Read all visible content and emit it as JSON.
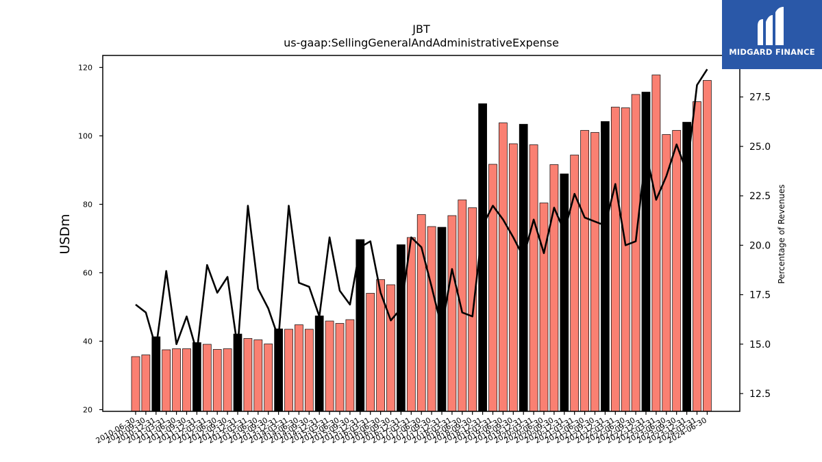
{
  "chart_data": {
    "type": "bar",
    "title": "JBT",
    "subtitle": "us-gaap:SellingGeneralAndAdministrativeExpense",
    "ylabel": "USDm",
    "y2label": "Percentage of Revenues",
    "ylim": [
      19.5,
      123.5
    ],
    "y2lim": [
      11.6,
      29.6
    ],
    "yticks": [
      20,
      40,
      60,
      80,
      100,
      120
    ],
    "y2ticks": [
      12.5,
      15.0,
      17.5,
      20.0,
      22.5,
      25.0,
      27.5
    ],
    "grid": false,
    "colors": {
      "bar_quarter": "#fa8072",
      "bar_annual": "#000000",
      "line": "#000000"
    },
    "categories": [
      "2010-06-30",
      "2010-09-30",
      "2010-12-31",
      "2011-03-31",
      "2011-06-30",
      "2011-09-30",
      "2011-12-31",
      "2012-03-31",
      "2012-06-30",
      "2012-09-30",
      "2012-12-31",
      "2013-03-31",
      "2013-06-30",
      "2013-09-30",
      "2013-12-31",
      "2014-03-31",
      "2014-06-30",
      "2014-09-30",
      "2014-12-31",
      "2015-03-31",
      "2015-06-30",
      "2015-09-30",
      "2015-12-31",
      "2016-03-31",
      "2016-06-30",
      "2016-09-30",
      "2016-12-31",
      "2017-03-31",
      "2017-06-30",
      "2017-09-30",
      "2017-12-31",
      "2018-03-31",
      "2018-06-30",
      "2018-09-30",
      "2018-12-31",
      "2019-03-31",
      "2019-06-30",
      "2019-09-30",
      "2019-12-31",
      "2020-03-31",
      "2020-06-30",
      "2020-09-30",
      "2020-12-31",
      "2021-03-31",
      "2021-06-30",
      "2021-09-30",
      "2021-12-31",
      "2022-03-31",
      "2022-06-30",
      "2022-09-30",
      "2022-12-31",
      "2023-03-31",
      "2023-06-30",
      "2023-09-30",
      "2023-12-31",
      "2024-03-31",
      "2024-06-30"
    ],
    "series": [
      {
        "values": [
          35.5,
          36.0,
          41.3,
          37.5,
          37.8,
          37.8,
          39.6,
          39.1,
          37.6,
          37.8,
          42.1,
          40.8,
          40.4,
          39.2,
          43.6,
          43.5,
          44.8,
          43.5,
          47.4,
          45.9,
          45.2,
          46.3,
          69.7,
          54.0,
          58.0,
          56.5,
          68.2,
          70.3,
          77.0,
          73.5,
          73.3,
          76.7,
          81.3,
          79.0,
          109.4,
          91.7,
          103.8,
          97.7,
          103.4,
          97.4,
          80.4,
          91.6,
          88.9,
          94.4,
          101.6,
          101.0,
          104.2,
          108.4,
          108.2,
          112.1,
          112.8,
          117.8,
          100.4,
          101.6,
          104.0,
          110.0,
          116.2
        ],
        "annual": [
          false,
          false,
          true,
          false,
          false,
          false,
          true,
          false,
          false,
          false,
          true,
          false,
          false,
          false,
          true,
          false,
          false,
          false,
          true,
          false,
          false,
          false,
          true,
          false,
          false,
          false,
          true,
          false,
          false,
          false,
          true,
          false,
          false,
          false,
          true,
          false,
          false,
          false,
          true,
          false,
          false,
          false,
          true,
          false,
          false,
          false,
          true,
          false,
          false,
          false,
          true,
          false,
          false,
          false,
          true,
          false,
          false
        ]
      },
      {
        "axis": "right",
        "type": "line",
        "values": [
          17.0,
          16.6,
          14.8,
          18.7,
          15.0,
          16.4,
          14.6,
          19.0,
          17.6,
          18.4,
          14.8,
          22.0,
          17.8,
          16.8,
          15.3,
          22.0,
          18.1,
          17.9,
          16.4,
          20.4,
          17.7,
          17.0,
          19.9,
          20.2,
          17.6,
          16.2,
          16.8,
          20.4,
          19.9,
          17.9,
          15.8,
          18.8,
          16.6,
          16.4,
          21.0,
          22.0,
          21.3,
          20.4,
          19.4,
          21.3,
          19.6,
          21.9,
          20.7,
          22.6,
          21.4,
          21.2,
          21.0,
          23.1,
          20.0,
          20.2,
          24.7,
          22.3,
          23.5,
          25.1,
          23.7,
          28.1,
          28.9
        ]
      }
    ]
  },
  "logo": {
    "text": "MIDGARD FINANCE"
  }
}
